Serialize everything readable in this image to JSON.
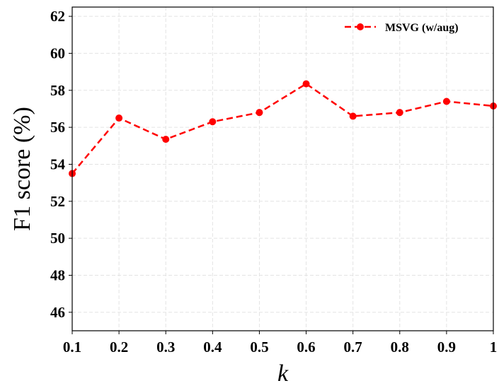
{
  "chart_data": {
    "type": "line",
    "xlabel": "k",
    "ylabel": "F1 score (%)",
    "x": [
      0.1,
      0.2,
      0.3,
      0.4,
      0.5,
      0.6,
      0.7,
      0.8,
      0.9,
      1.0
    ],
    "x_tick_labels": [
      "0.1",
      "0.2",
      "0.3",
      "0.4",
      "0.5",
      "0.6",
      "0.7",
      "0.8",
      "0.9",
      "1"
    ],
    "y_ticks": [
      46,
      48,
      50,
      52,
      54,
      56,
      58,
      60,
      62
    ],
    "y_tick_labels": [
      "46",
      "48",
      "50",
      "52",
      "54",
      "56",
      "58",
      "60",
      "62"
    ],
    "xlim": [
      0.1,
      1.0
    ],
    "ylim": [
      45.0,
      62.5
    ],
    "grid": true,
    "legend_position": "top-right",
    "series": [
      {
        "name": "MSVG (w/aug)",
        "color": "#ff0000",
        "line_style": "dashed",
        "marker": "circle",
        "values": [
          53.5,
          56.5,
          55.35,
          56.3,
          56.8,
          58.35,
          56.6,
          56.8,
          57.4,
          57.15
        ]
      }
    ]
  }
}
